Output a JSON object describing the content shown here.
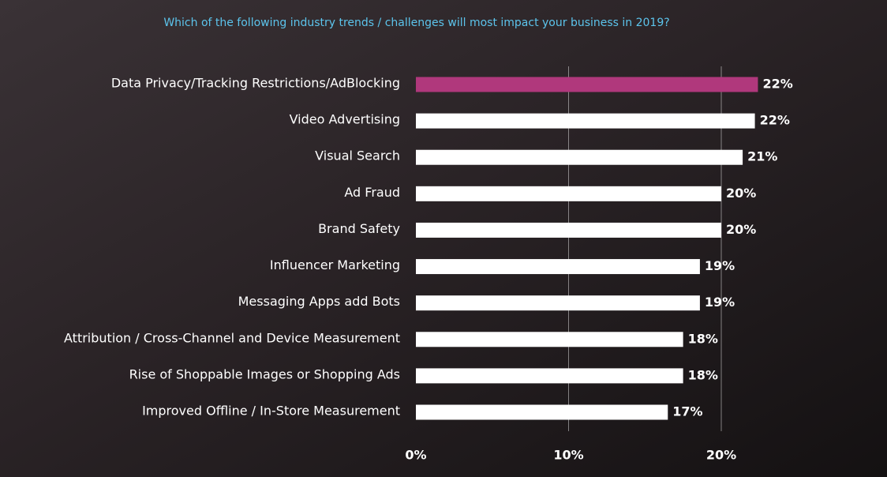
{
  "chart_data": {
    "type": "bar",
    "orientation": "horizontal",
    "title": "Which of the following industry trends / challenges will most impact your business in 2019?",
    "categories": [
      "Data Privacy/Tracking Restrictions/AdBlocking",
      "Video Advertising",
      "Visual Search",
      "Ad Fraud",
      "Brand Safety",
      "Influencer Marketing",
      "Messaging Apps add Bots",
      "Attribution / Cross-Channel and Device Measurement",
      "Rise of Shoppable Images or Shopping Ads",
      "Improved Offline / In-Store Measurement"
    ],
    "values": [
      22.4,
      22.2,
      21.4,
      20,
      20,
      18.6,
      18.6,
      17.5,
      17.5,
      16.5
    ],
    "value_labels": [
      "22%",
      "22%",
      "21%",
      "20%",
      "20%",
      "19%",
      "19%",
      "18%",
      "18%",
      "17%"
    ],
    "colors": [
      "#b0387c",
      "#ffffff",
      "#ffffff",
      "#ffffff",
      "#ffffff",
      "#ffffff",
      "#ffffff",
      "#ffffff",
      "#ffffff",
      "#ffffff"
    ],
    "xlim": [
      0,
      25
    ],
    "xticks": [
      {
        "value": 0,
        "label": "0%"
      },
      {
        "value": 10,
        "label": "10%"
      },
      {
        "value": 20,
        "label": "20%"
      }
    ],
    "grid": true
  }
}
